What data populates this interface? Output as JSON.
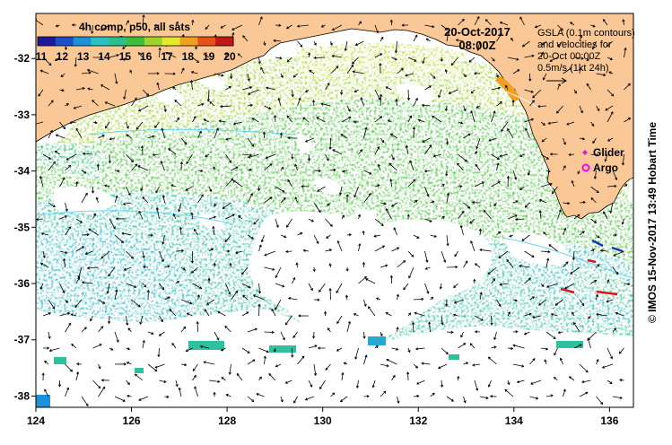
{
  "colorbar": {
    "title": "4h comp, p50, all sats",
    "ticks": [
      "11",
      "12",
      "13",
      "14",
      "15",
      "16",
      "17",
      "18",
      "19",
      "20"
    ],
    "colors": [
      "#1a1a9a",
      "#1f4fc8",
      "#1e8fd8",
      "#27c3c3",
      "#2bc08a",
      "#3cbf3a",
      "#9fd22a",
      "#e6e62a",
      "#f0a020",
      "#e85018",
      "#c01818"
    ]
  },
  "datetime": {
    "date": "20-Oct-2017",
    "time": "08:00Z"
  },
  "gsla_note": {
    "line1": "GSLA (0.1m contours)",
    "line2": "and velocities for",
    "line3": "20-Oct 00:00Z",
    "line4": "0.5m/s (1kt 24h)"
  },
  "legend": {
    "glider": "Glider",
    "argo": "Argo",
    "glider_color": "#d020d0",
    "argo_color": "#ff00ff"
  },
  "credit": "© IMOS 15-Nov-2017 13:49 Hobart Time",
  "axes": {
    "x_ticks": [
      "124",
      "126",
      "128",
      "130",
      "132",
      "134",
      "136"
    ],
    "y_ticks": [
      "-32",
      "-33",
      "-34",
      "-35",
      "-36",
      "-37",
      "-38"
    ],
    "lon_range": [
      124,
      136.5
    ],
    "lat_range": [
      -38.2,
      -31.2
    ]
  },
  "colors": {
    "land": "#f9c896",
    "no_data": "#ffffff",
    "frame": "#000000"
  }
}
